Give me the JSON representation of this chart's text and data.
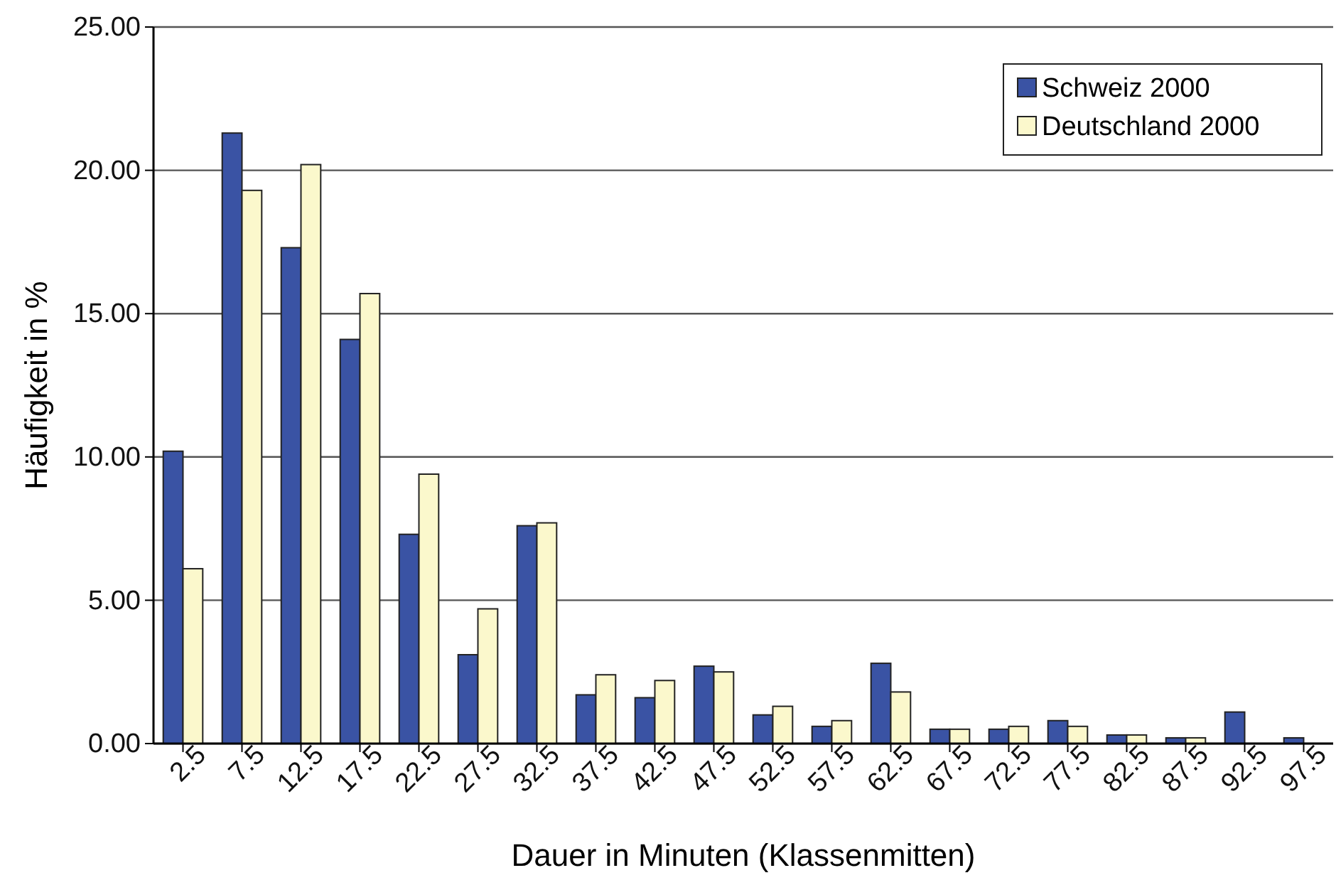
{
  "chart_data": {
    "type": "bar",
    "xlabel": "Dauer in Minuten (Klassenmitten)",
    "ylabel": "Häufigkeit in %",
    "categories": [
      "2.5",
      "7.5",
      "12.5",
      "17.5",
      "22.5",
      "27.5",
      "32.5",
      "37.5",
      "42.5",
      "47.5",
      "52.5",
      "57.5",
      "62.5",
      "67.5",
      "72.5",
      "77.5",
      "82.5",
      "87.5",
      "92.5",
      "97.5"
    ],
    "series": [
      {
        "name": "Schweiz 2000",
        "color": "#3a53a4",
        "values": [
          10.2,
          21.3,
          17.3,
          14.1,
          7.3,
          3.1,
          7.6,
          1.7,
          1.6,
          2.7,
          1.0,
          0.6,
          2.8,
          0.5,
          0.5,
          0.8,
          0.3,
          0.2,
          1.1,
          0.2
        ]
      },
      {
        "name": "Deutschland 2000",
        "color": "#fbf8cc",
        "values": [
          6.1,
          19.3,
          20.2,
          15.7,
          9.4,
          4.7,
          7.7,
          2.4,
          2.2,
          2.5,
          1.3,
          0.8,
          1.8,
          0.5,
          0.6,
          0.6,
          0.3,
          0.2,
          null,
          null
        ]
      }
    ],
    "ylim": [
      0,
      25
    ],
    "yticks": [
      {
        "value": 0,
        "label": "0.00"
      },
      {
        "value": 5,
        "label": "5.00"
      },
      {
        "value": 10,
        "label": "10.00"
      },
      {
        "value": 15,
        "label": "15.00"
      },
      {
        "value": 20,
        "label": "20.00"
      },
      {
        "value": 25,
        "label": "25.00"
      }
    ],
    "grid": "y",
    "legend": "top right"
  }
}
